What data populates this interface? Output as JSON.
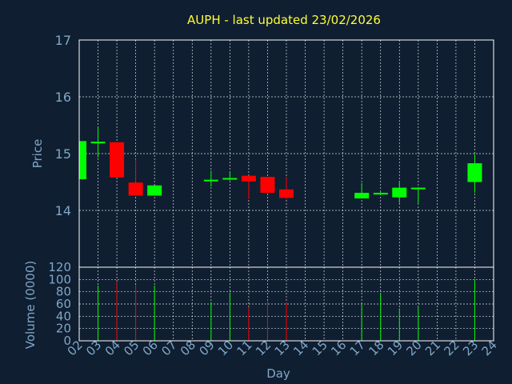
{
  "chart_data": {
    "type": "candlestick",
    "title": "AUPH - last updated 23/02/2026",
    "price_panel": {
      "ylabel": "Price",
      "ylim": [
        13.0,
        17.0
      ],
      "yticks": [
        "14",
        "15",
        "16",
        "17"
      ],
      "grid": true
    },
    "volume_panel": {
      "ylabel": "Volume (0000)",
      "ylim": [
        0,
        120
      ],
      "yticks": [
        "0",
        "20",
        "40",
        "60",
        "80",
        "100",
        "120"
      ]
    },
    "xlabel": "Day",
    "days": [
      "02",
      "03",
      "04",
      "05",
      "06",
      "07",
      "08",
      "09",
      "10",
      "11",
      "12",
      "13",
      "14",
      "15",
      "16",
      "17",
      "18",
      "19",
      "20",
      "21",
      "22",
      "23",
      "24"
    ],
    "candles": [
      {
        "day": "02",
        "open": 14.55,
        "high": 15.22,
        "low": 14.55,
        "close": 15.22,
        "volume": 100
      },
      {
        "day": "03",
        "open": 15.18,
        "high": 15.47,
        "low": 14.93,
        "close": 15.21,
        "volume": 90
      },
      {
        "day": "04",
        "open": 15.2,
        "high": 15.2,
        "low": 14.58,
        "close": 14.58,
        "volume": 96
      },
      {
        "day": "05",
        "open": 14.49,
        "high": 14.9,
        "low": 14.26,
        "close": 14.26,
        "volume": 91
      },
      {
        "day": "06",
        "open": 14.26,
        "high": 14.44,
        "low": 14.26,
        "close": 14.44,
        "volume": 90
      },
      {
        "day": "09",
        "open": 14.52,
        "high": 14.7,
        "low": 14.42,
        "close": 14.54,
        "volume": 63
      },
      {
        "day": "10",
        "open": 14.55,
        "high": 14.68,
        "low": 14.53,
        "close": 14.57,
        "volume": 79
      },
      {
        "day": "11",
        "open": 14.61,
        "high": 14.61,
        "low": 14.2,
        "close": 14.51,
        "volume": 55
      },
      {
        "day": "12",
        "open": 14.59,
        "high": 14.59,
        "low": 14.31,
        "close": 14.31,
        "volume": 66
      },
      {
        "day": "13",
        "open": 14.37,
        "high": 14.59,
        "low": 14.2,
        "close": 14.22,
        "volume": 62
      },
      {
        "day": "17",
        "open": 14.21,
        "high": 14.48,
        "low": 14.21,
        "close": 14.31,
        "volume": 59
      },
      {
        "day": "18",
        "open": 14.28,
        "high": 14.33,
        "low": 14.27,
        "close": 14.31,
        "volume": 76
      },
      {
        "day": "19",
        "open": 14.23,
        "high": 14.5,
        "low": 14.13,
        "close": 14.4,
        "volume": 53
      },
      {
        "day": "20",
        "open": 14.38,
        "high": 14.41,
        "low": 14.12,
        "close": 14.4,
        "volume": 55
      },
      {
        "day": "23",
        "open": 14.5,
        "high": 14.99,
        "low": 14.31,
        "close": 14.83,
        "volume": 100
      }
    ],
    "colors": {
      "background": "#0f1e30",
      "up": "#00ff00",
      "down": "#ff0000",
      "grid": "#ffffff",
      "text": "#7fa7c9",
      "title": "#ffff33"
    }
  }
}
